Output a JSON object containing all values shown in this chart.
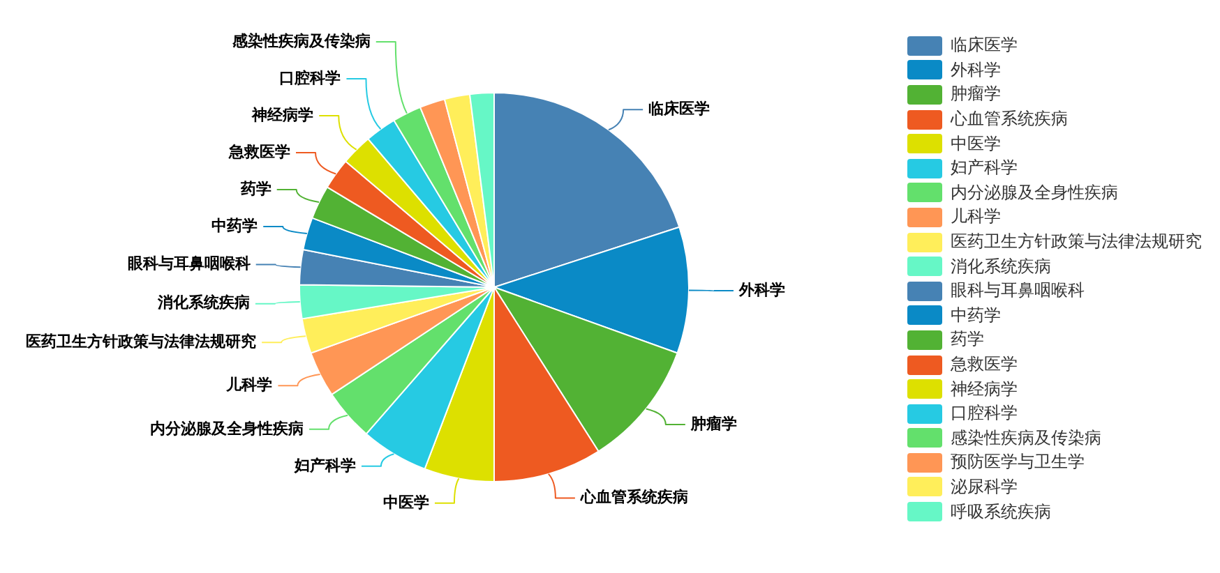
{
  "chart_data": {
    "type": "pie",
    "legend": "right",
    "categories": [
      "临床医学",
      "外科学",
      "肿瘤学",
      "心血管系统疾病",
      "中医学",
      "妇产科学",
      "内分泌腺及全身性疾病",
      "儿科学",
      "医药卫生方针政策与法律法规研究",
      "消化系统疾病",
      "眼科与耳鼻咽喉科",
      "中药学",
      "药学",
      "急救医学",
      "神经病学",
      "口腔科学",
      "感染性疾病及传染病",
      "预防医学与卫生学",
      "泌尿科学",
      "呼吸系统疾病"
    ],
    "values": [
      20,
      10.5,
      10.5,
      9,
      5.8,
      5.6,
      4.3,
      3.8,
      2.9,
      2.8,
      2.9,
      2.7,
      2.8,
      2.6,
      2.6,
      2.6,
      2.4,
      2.1,
      2.1,
      2.0
    ],
    "colors": [
      "#4682b4",
      "#0a8ac6",
      "#52b234",
      "#ee5a21",
      "#dde000",
      "#26cae3",
      "#63e06c",
      "#ff9655",
      "#ffee5a",
      "#66f7c6",
      "#4682b4",
      "#0a8ac6",
      "#52b234",
      "#ee5a21",
      "#dde000",
      "#26cae3",
      "#63e06c",
      "#ff9655",
      "#ffee5a",
      "#66f7c6"
    ]
  }
}
